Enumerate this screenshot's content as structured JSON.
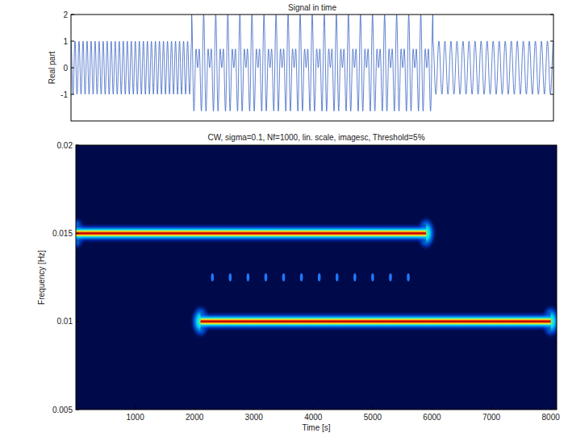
{
  "chart_data": [
    {
      "type": "line",
      "title": "Signal in time",
      "y_label": "Real part",
      "xlim": [
        0,
        8000
      ],
      "ylim": [
        -2,
        2
      ],
      "yticks": [
        -1,
        0,
        1,
        2
      ],
      "tick_labels": "y",
      "color": "#3a64c4",
      "components": [
        {
          "frequency": 0.015,
          "amplitude": 1,
          "start": 0,
          "end": 6000
        },
        {
          "frequency": 0.01,
          "amplitude": 1,
          "start": 2000,
          "end": 8000
        }
      ]
    },
    {
      "type": "heatmap",
      "title": "CW, sigma=0.1, Nf=1000, lin. scale, imagesc, Threshold=5%",
      "x_label": "Time [s]",
      "y_label": "Frequency [Hz]",
      "xlim": [
        0,
        8100
      ],
      "ylim": [
        0.005,
        0.02
      ],
      "xticks": [
        1000,
        2000,
        3000,
        4000,
        5000,
        6000,
        7000,
        8000
      ],
      "yticks": [
        0.005,
        0.01,
        0.015,
        0.02
      ],
      "ridges": [
        {
          "frequency": 0.015,
          "start": 0,
          "end": 5900
        },
        {
          "frequency": 0.01,
          "start": 2100,
          "end": 8000
        }
      ],
      "cross_terms": {
        "frequency": 0.0125,
        "times": [
          2300,
          2600,
          2900,
          3200,
          3500,
          3800,
          4100,
          4400,
          4700,
          5000,
          5300,
          5600
        ]
      }
    }
  ]
}
